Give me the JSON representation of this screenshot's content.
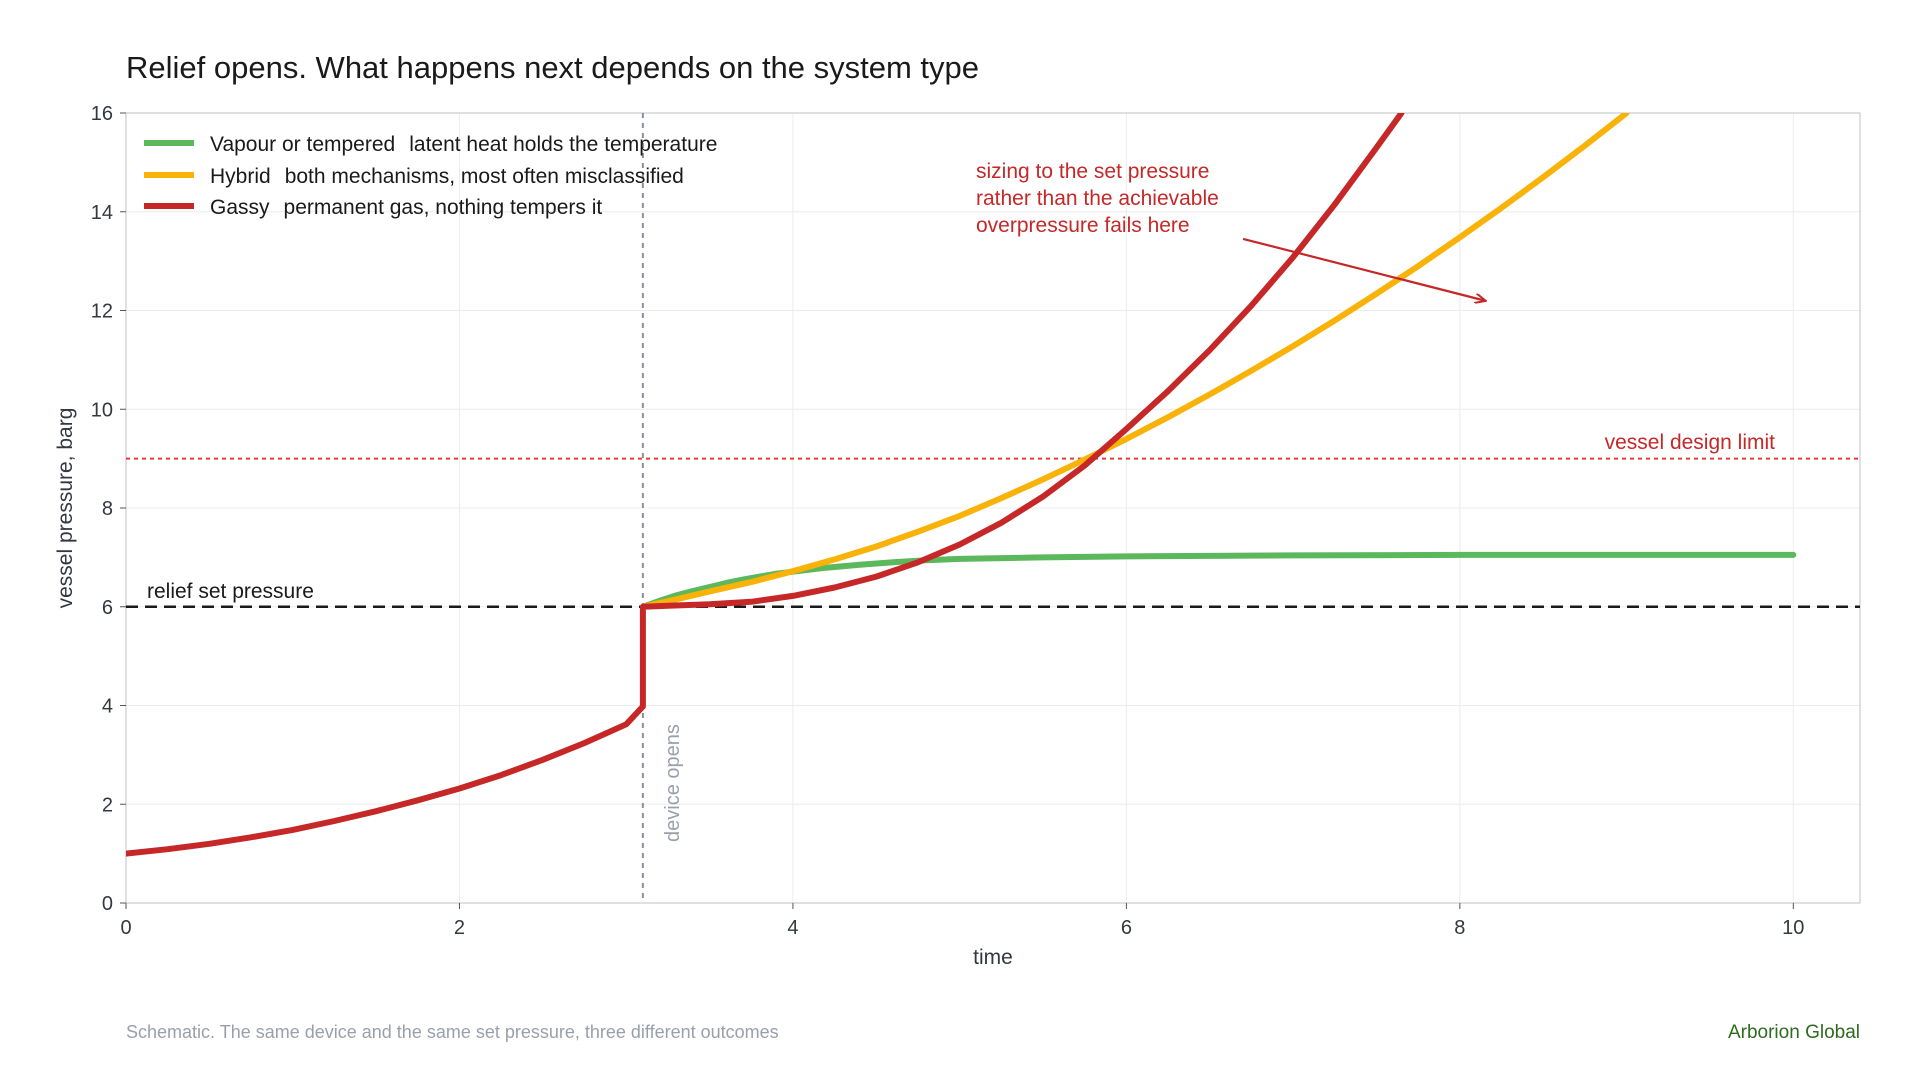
{
  "chart_data": {
    "type": "line",
    "title": "Relief opens. What happens next depends on the system type",
    "xlabel": "time",
    "ylabel": "vessel pressure, barg",
    "xlim": [
      0,
      10.4
    ],
    "ylim": [
      0,
      16
    ],
    "x_ticks": [
      0,
      2,
      4,
      6,
      8,
      10
    ],
    "y_ticks": [
      0,
      2,
      4,
      6,
      8,
      10,
      12,
      14,
      16
    ],
    "grid": true,
    "legend_placement": "top-left",
    "series": [
      {
        "name": "Vapour or tempered",
        "description": "latent heat holds the temperature",
        "color": "#5cb85c",
        "points": [
          [
            3.1,
            6.0
          ],
          [
            3.2,
            6.12
          ],
          [
            3.3,
            6.23
          ],
          [
            3.4,
            6.32
          ],
          [
            3.5,
            6.4
          ],
          [
            3.6,
            6.48
          ],
          [
            3.7,
            6.55
          ],
          [
            3.8,
            6.61
          ],
          [
            3.9,
            6.67
          ],
          [
            4.0,
            6.71
          ],
          [
            4.2,
            6.79
          ],
          [
            4.4,
            6.85
          ],
          [
            4.6,
            6.9
          ],
          [
            4.8,
            6.94
          ],
          [
            5.0,
            6.97
          ],
          [
            5.5,
            7.0
          ],
          [
            6.0,
            7.02
          ],
          [
            6.5,
            7.03
          ],
          [
            7.0,
            7.04
          ],
          [
            8.0,
            7.05
          ],
          [
            9.0,
            7.05
          ],
          [
            10.0,
            7.05
          ]
        ]
      },
      {
        "name": "Hybrid",
        "description": "both mechanisms, most often misclassified",
        "color": "#f9b208",
        "points": [
          [
            3.1,
            6.0
          ],
          [
            3.3,
            6.15
          ],
          [
            3.5,
            6.31
          ],
          [
            3.75,
            6.5
          ],
          [
            4.0,
            6.72
          ],
          [
            4.25,
            6.96
          ],
          [
            4.5,
            7.22
          ],
          [
            4.75,
            7.52
          ],
          [
            5.0,
            7.84
          ],
          [
            5.25,
            8.2
          ],
          [
            5.5,
            8.58
          ],
          [
            5.75,
            8.98
          ],
          [
            6.0,
            9.4
          ],
          [
            6.25,
            9.84
          ],
          [
            6.5,
            10.3
          ],
          [
            6.75,
            10.78
          ],
          [
            7.0,
            11.28
          ],
          [
            7.25,
            11.8
          ],
          [
            7.5,
            12.34
          ],
          [
            7.75,
            12.9
          ],
          [
            8.0,
            13.48
          ],
          [
            8.25,
            14.08
          ],
          [
            8.5,
            14.7
          ],
          [
            8.75,
            15.34
          ],
          [
            9.0,
            16.0
          ]
        ]
      },
      {
        "name": "Gassy",
        "description": "permanent gas, nothing tempers it",
        "color": "#c62828",
        "points": [
          [
            0.0,
            1.0
          ],
          [
            0.25,
            1.09
          ],
          [
            0.5,
            1.2
          ],
          [
            0.75,
            1.33
          ],
          [
            1.0,
            1.48
          ],
          [
            1.25,
            1.66
          ],
          [
            1.5,
            1.86
          ],
          [
            1.75,
            2.08
          ],
          [
            2.0,
            2.32
          ],
          [
            2.25,
            2.59
          ],
          [
            2.5,
            2.9
          ],
          [
            2.75,
            3.24
          ],
          [
            3.0,
            3.62
          ],
          [
            3.1,
            3.98
          ],
          [
            3.1,
            6.0
          ],
          [
            3.25,
            6.02
          ],
          [
            3.5,
            6.05
          ],
          [
            3.75,
            6.1
          ],
          [
            4.0,
            6.22
          ],
          [
            4.25,
            6.39
          ],
          [
            4.5,
            6.61
          ],
          [
            4.75,
            6.9
          ],
          [
            5.0,
            7.26
          ],
          [
            5.25,
            7.7
          ],
          [
            5.5,
            8.23
          ],
          [
            5.75,
            8.86
          ],
          [
            6.0,
            9.6
          ],
          [
            6.25,
            10.37
          ],
          [
            6.5,
            11.2
          ],
          [
            6.75,
            12.1
          ],
          [
            7.0,
            13.08
          ],
          [
            7.25,
            14.15
          ],
          [
            7.5,
            15.3
          ],
          [
            7.65,
            16.0
          ]
        ]
      }
    ],
    "reference_lines": {
      "set_pressure": {
        "label": "relief set pressure",
        "y": 6,
        "color": "#1a1a1a"
      },
      "design_limit": {
        "label": "vessel design limit",
        "y": 9,
        "color": "#e53935"
      },
      "device_opens": {
        "label": "device opens",
        "x": 3.1,
        "color": "#8a8f99"
      }
    },
    "annotation": {
      "lines": [
        "sizing to the set pressure",
        "rather than the achievable",
        "overpressure fails here"
      ],
      "color": "#c62828",
      "arrow_from": [
        6.7,
        13.45
      ],
      "arrow_to": [
        8.15,
        12.2
      ]
    }
  },
  "footer": {
    "note": "Schematic. The same device and the same set pressure, three different outcomes",
    "brand": "Arborion Global"
  }
}
